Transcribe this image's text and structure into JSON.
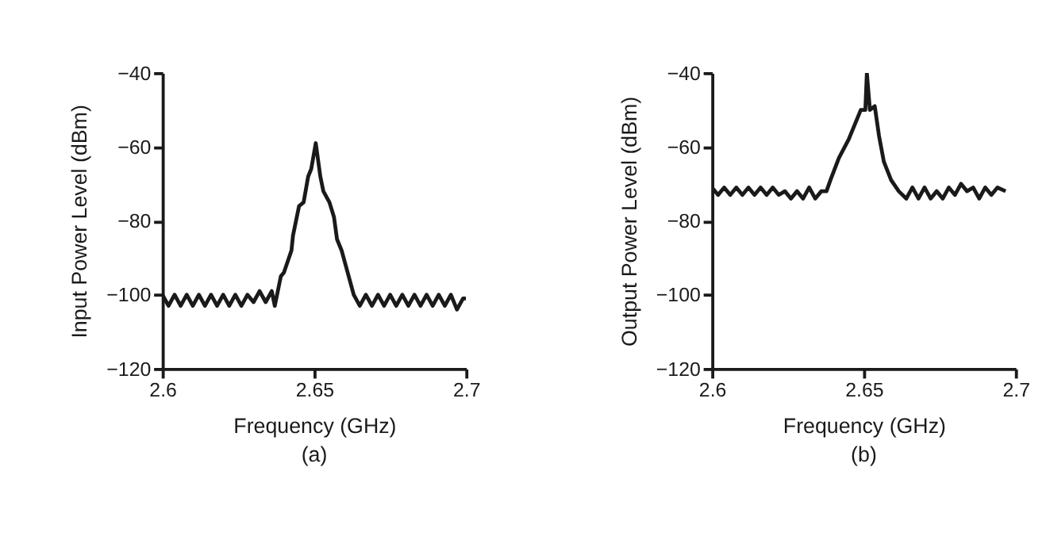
{
  "chart_data": [
    {
      "type": "line",
      "xlabel": "Frequency (GHz)",
      "ylabel": "Input Power Level (dBm)",
      "annotations": [
        "(a)"
      ],
      "x": [
        2.6,
        2.602,
        2.604,
        2.606,
        2.608,
        2.61,
        2.612,
        2.614,
        2.616,
        2.618,
        2.62,
        2.622,
        2.624,
        2.626,
        2.628,
        2.63,
        2.632,
        2.634,
        2.636,
        2.637,
        2.639,
        2.64,
        2.6425,
        2.643,
        2.645,
        2.6465,
        2.648,
        2.649,
        2.6505,
        2.652,
        2.653,
        2.655,
        2.6565,
        2.6575,
        2.659,
        2.661,
        2.663,
        2.665,
        2.667,
        2.669,
        2.671,
        2.673,
        2.675,
        2.677,
        2.679,
        2.681,
        2.683,
        2.685,
        2.687,
        2.689,
        2.691,
        2.693,
        2.695,
        2.697,
        2.699,
        2.7
      ],
      "series": [
        {
          "color": "#1a1a1a",
          "values": [
            -100,
            -103,
            -100,
            -103,
            -100,
            -103,
            -100,
            -103,
            -100,
            -103,
            -100,
            -103,
            -100,
            -103,
            -100,
            -102,
            -99,
            -102,
            -99,
            -103,
            -95,
            -94,
            -88,
            -84,
            -76,
            -75,
            -68,
            -66,
            -59,
            -68,
            -72,
            -75,
            -79,
            -85,
            -88,
            -94,
            -100,
            -103,
            -100,
            -103,
            -100,
            -103,
            -100,
            -103,
            -100,
            -103,
            -100,
            -103,
            -100,
            -103,
            -100,
            -103,
            -100,
            -104,
            -101,
            -101
          ]
        }
      ],
      "xlim": [
        2.6,
        2.7
      ],
      "xticks": [
        2.6,
        2.65,
        2.7
      ],
      "ylim": [
        -120,
        -40
      ],
      "yticks": [
        -40,
        -60,
        -80,
        -100,
        -120
      ],
      "grid": false,
      "line_style": "solid",
      "marker": "none"
    },
    {
      "type": "line",
      "xlabel": "Frequency (GHz)",
      "ylabel": "Output Power Level (dBm)",
      "annotations": [
        "(b)"
      ],
      "x": [
        2.6,
        2.602,
        2.604,
        2.606,
        2.608,
        2.61,
        2.612,
        2.614,
        2.616,
        2.618,
        2.62,
        2.622,
        2.624,
        2.626,
        2.628,
        2.63,
        2.632,
        2.634,
        2.636,
        2.6377,
        2.639,
        2.6418,
        2.645,
        2.6475,
        2.649,
        2.6505,
        2.651,
        2.652,
        2.6536,
        2.655,
        2.6566,
        2.659,
        2.6615,
        2.664,
        2.666,
        2.668,
        2.67,
        2.672,
        2.674,
        2.676,
        2.678,
        2.68,
        2.682,
        2.684,
        2.686,
        2.688,
        2.69,
        2.692,
        2.694,
        2.6967
      ],
      "series": [
        {
          "color": "#1a1a1a",
          "values": [
            -71,
            -73,
            -71,
            -73,
            -71,
            -73,
            -71,
            -73,
            -71,
            -73,
            -71,
            -73,
            -72,
            -74,
            -72,
            -74,
            -71,
            -74,
            -72,
            -72,
            -69,
            -63,
            -58,
            -53,
            -50,
            -50,
            -40,
            -50,
            -49,
            -57,
            -64,
            -69,
            -72,
            -74,
            -71,
            -74,
            -71,
            -74,
            -72,
            -74,
            -71,
            -73,
            -70,
            -72,
            -71,
            -74,
            -71,
            -73,
            -71,
            -72
          ]
        }
      ],
      "xlim": [
        2.6,
        2.7
      ],
      "xticks": [
        2.6,
        2.65,
        2.7
      ],
      "ylim": [
        -120,
        -40
      ],
      "yticks": [
        -40,
        -60,
        -80,
        -100,
        -120
      ],
      "grid": false,
      "line_style": "solid",
      "marker": "none"
    }
  ]
}
